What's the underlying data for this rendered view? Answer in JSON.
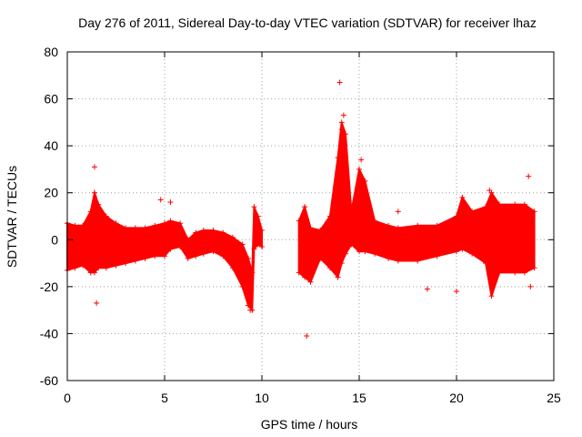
{
  "chart_data": {
    "type": "scatter",
    "title": "Day 276 of 2011, Sidereal Day-to-day VTEC variation (SDTVAR) for receiver lhaz",
    "xlabel": "GPS time / hours",
    "ylabel": "SDTVAR / TECUs",
    "xlim": [
      0,
      25
    ],
    "ylim": [
      -60,
      80
    ],
    "xticks": [
      "0",
      "5",
      "10",
      "15",
      "20",
      "25"
    ],
    "yticks": [
      "-60",
      "-40",
      "-20",
      "0",
      "20",
      "40",
      "60",
      "80"
    ],
    "xtick_values": [
      0,
      5,
      10,
      15,
      20,
      25
    ],
    "ytick_values": [
      -60,
      -40,
      -20,
      0,
      20,
      40,
      60,
      80
    ],
    "grid": true,
    "marker": "+",
    "series": [
      {
        "name": "SDTVAR",
        "color": "#ff0000",
        "band_note": "dense scatter band, approximate lower/upper envelope per time",
        "envelope": [
          [
            0.0,
            -13,
            7
          ],
          [
            0.4,
            -12,
            6
          ],
          [
            0.8,
            -11,
            6
          ],
          [
            1.2,
            -14,
            12
          ],
          [
            1.4,
            -14,
            20
          ],
          [
            1.6,
            -12,
            15
          ],
          [
            2.0,
            -12,
            10
          ],
          [
            2.5,
            -11,
            7
          ],
          [
            3.0,
            -10,
            5
          ],
          [
            3.5,
            -9,
            5
          ],
          [
            4.0,
            -8,
            5
          ],
          [
            4.5,
            -7,
            6
          ],
          [
            5.0,
            -7,
            7
          ],
          [
            5.3,
            -4,
            8
          ],
          [
            5.8,
            -3,
            7
          ],
          [
            6.2,
            -8,
            0
          ],
          [
            6.6,
            -7,
            3
          ],
          [
            7.0,
            -6,
            4
          ],
          [
            7.5,
            -5,
            4
          ],
          [
            8.0,
            -7,
            3
          ],
          [
            8.5,
            -12,
            1
          ],
          [
            9.0,
            -20,
            -2
          ],
          [
            9.3,
            -28,
            -8
          ],
          [
            9.5,
            -30,
            -14
          ],
          [
            9.6,
            -4,
            14
          ],
          [
            9.8,
            -2,
            10
          ],
          [
            10.0,
            -3,
            4
          ],
          [
            11.9,
            -14,
            8
          ],
          [
            12.2,
            -16,
            14
          ],
          [
            12.5,
            -18,
            5
          ],
          [
            13.0,
            -8,
            4
          ],
          [
            13.5,
            -12,
            10
          ],
          [
            13.9,
            -16,
            35
          ],
          [
            14.1,
            -10,
            50
          ],
          [
            14.3,
            -6,
            45
          ],
          [
            14.6,
            -2,
            12
          ],
          [
            15.0,
            -5,
            30
          ],
          [
            15.3,
            -5,
            25
          ],
          [
            15.8,
            -6,
            8
          ],
          [
            16.5,
            -8,
            6
          ],
          [
            17.0,
            -9,
            5
          ],
          [
            18.0,
            -9,
            6
          ],
          [
            19.0,
            -7,
            6
          ],
          [
            20.0,
            -5,
            10
          ],
          [
            20.3,
            -4,
            18
          ],
          [
            20.8,
            -6,
            12
          ],
          [
            21.5,
            -10,
            14
          ],
          [
            21.8,
            -24,
            20
          ],
          [
            22.2,
            -14,
            15
          ],
          [
            23.0,
            -14,
            15
          ],
          [
            23.5,
            -14,
            15
          ],
          [
            24.0,
            -12,
            12
          ]
        ],
        "outliers": [
          [
            1.4,
            31
          ],
          [
            1.5,
            -27
          ],
          [
            4.8,
            17
          ],
          [
            5.3,
            16
          ],
          [
            12.3,
            -41
          ],
          [
            14.0,
            67
          ],
          [
            14.2,
            53
          ],
          [
            14.1,
            47
          ],
          [
            17.0,
            12
          ],
          [
            18.5,
            -21
          ],
          [
            20.0,
            -22
          ],
          [
            21.7,
            21
          ],
          [
            23.7,
            27
          ],
          [
            23.8,
            -20
          ],
          [
            15.1,
            34
          ],
          [
            9.4,
            -30
          ]
        ]
      }
    ]
  }
}
